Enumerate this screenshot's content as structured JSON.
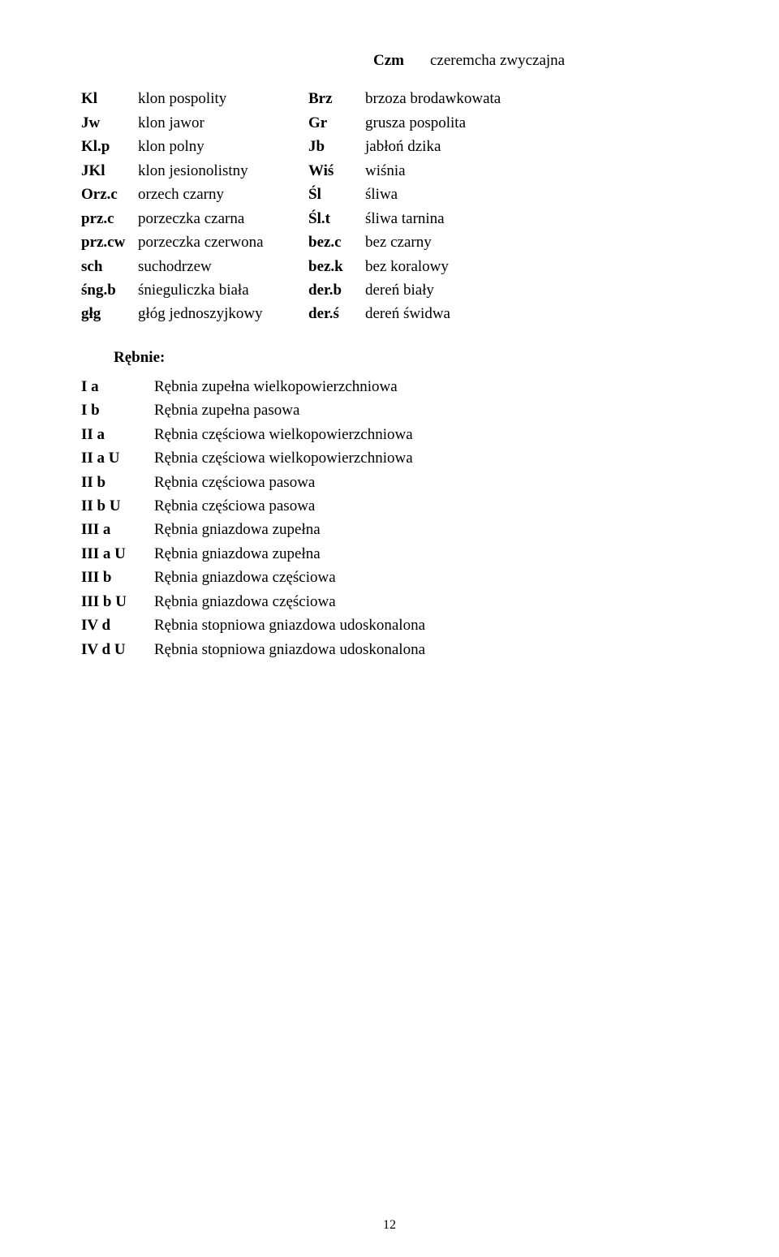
{
  "text_color": "#000000",
  "background_color": "#ffffff",
  "font_family": "Times New Roman",
  "base_fontsize": 19,
  "top_row": {
    "col_c": "Czm",
    "col_d": "czeremcha zwyczajna"
  },
  "species": [
    {
      "a": "Kl",
      "b": "klon pospolity",
      "c": "Brz",
      "d": "brzoza brodawkowata"
    },
    {
      "a": "Jw",
      "b": "klon jawor",
      "c": "Gr",
      "d": "grusza pospolita"
    },
    {
      "a": "Kl.p",
      "b": "klon polny",
      "c": "Jb",
      "d": "jabłoń dzika"
    },
    {
      "a": "JKl",
      "b": "klon jesionolistny",
      "c": "Wiś",
      "d": "wiśnia"
    },
    {
      "a": "Orz.c",
      "b": "orzech czarny",
      "c": "Śl",
      "d": "śliwa"
    },
    {
      "a": "prz.c",
      "b": "porzeczka czarna",
      "c": "Śl.t",
      "d": "śliwa tarnina"
    },
    {
      "a": "prz.cw",
      "b": "porzeczka czerwona",
      "c": "bez.c",
      "d": "bez czarny"
    },
    {
      "a": "sch",
      "b": "suchodrzew",
      "c": "bez.k",
      "d": "bez koralowy"
    },
    {
      "a": "śng.b",
      "b": "śnieguliczka biała",
      "c": "der.b",
      "d": "dereń biały"
    },
    {
      "a": "głg",
      "b": "głóg jednoszyjkowy",
      "c": "der.ś",
      "d": "dereń świdwa"
    }
  ],
  "rebnie_title": "Rębnie:",
  "rebnie": [
    {
      "a": "I a",
      "b": "Rębnia zupełna wielkopowierzchniowa"
    },
    {
      "a": "I b",
      "b": "Rębnia zupełna pasowa"
    },
    {
      "a": "II a",
      "b": "Rębnia częściowa wielkopowierzchniowa"
    },
    {
      "a": "II a U",
      "b": "Rębnia częściowa wielkopowierzchniowa"
    },
    {
      "a": "II b",
      "b": "Rębnia częściowa pasowa"
    },
    {
      "a": "II b U",
      "b": "Rębnia częściowa pasowa"
    },
    {
      "a": "III a",
      "b": "Rębnia gniazdowa zupełna"
    },
    {
      "a": "III a U",
      "b": "Rębnia gniazdowa zupełna"
    },
    {
      "a": "III b",
      "b": "Rębnia gniazdowa częściowa"
    },
    {
      "a": "III b U",
      "b": "Rębnia gniazdowa częściowa"
    },
    {
      "a": "IV d",
      "b": "Rębnia stopniowa gniazdowa udoskonalona"
    },
    {
      "a": "IV d U",
      "b": "Rębnia stopniowa gniazdowa udoskonalona"
    }
  ],
  "page_number": "12"
}
